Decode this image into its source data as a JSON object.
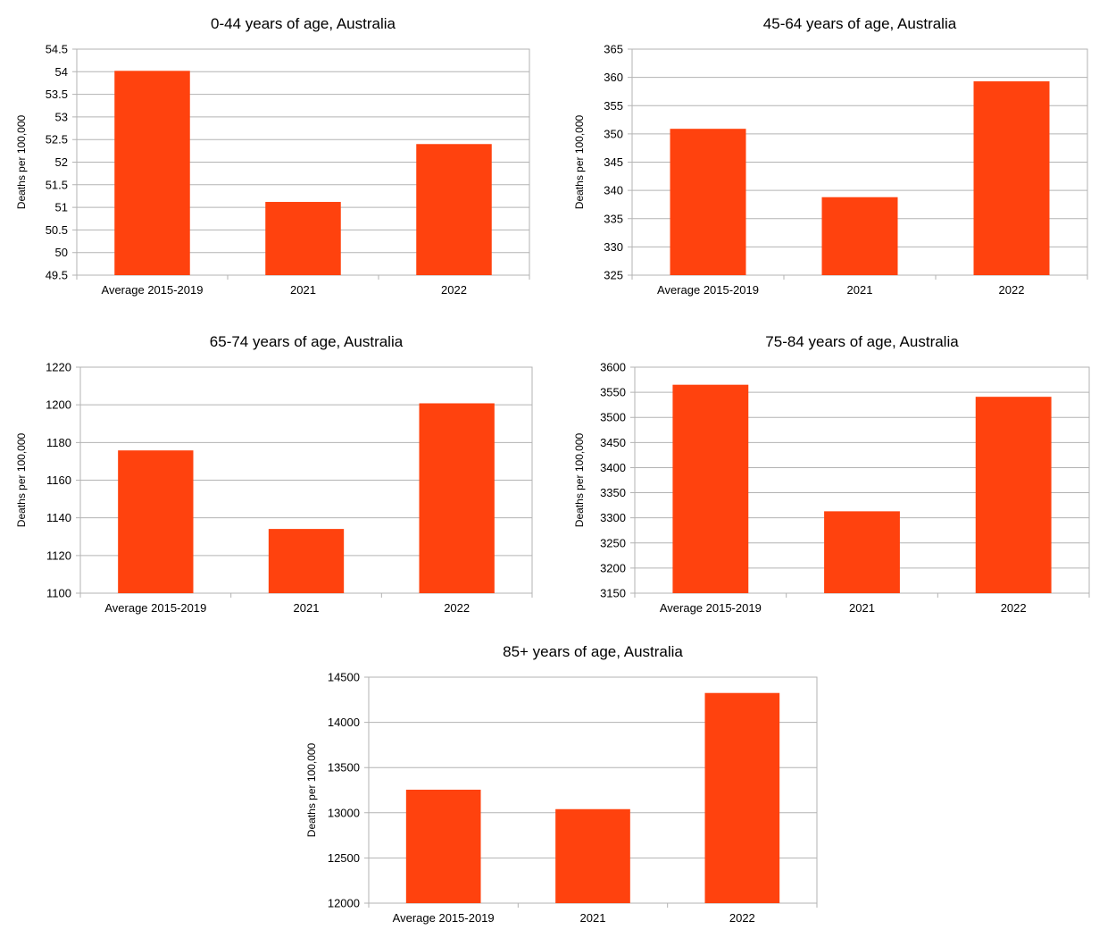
{
  "chart_data": [
    {
      "type": "bar",
      "title": "0-44 years of age, Australia",
      "ylabel": "Deaths per 100,000",
      "xlabel": "",
      "categories": [
        "Average 2015-2019",
        "2021",
        "2022"
      ],
      "values": [
        54.02,
        51.12,
        52.4
      ],
      "ylim": [
        49.5,
        54.5
      ],
      "yticks": [
        "49.5",
        "50",
        "50.5",
        "51",
        "51.5",
        "52",
        "52.5",
        "53",
        "53.5",
        "54",
        "54.5"
      ],
      "grid": true,
      "legend": "none",
      "bar_color": "#ff420e"
    },
    {
      "type": "bar",
      "title": "45-64 years of age, Australia",
      "ylabel": "Deaths per 100,000",
      "xlabel": "",
      "categories": [
        "Average 2015-2019",
        "2021",
        "2022"
      ],
      "values": [
        350.9,
        338.8,
        359.3
      ],
      "ylim": [
        325,
        365
      ],
      "yticks": [
        "325",
        "330",
        "335",
        "340",
        "345",
        "350",
        "355",
        "360",
        "365"
      ],
      "grid": true,
      "legend": "none",
      "bar_color": "#ff420e"
    },
    {
      "type": "bar",
      "title": "65-74 years of age, Australia",
      "ylabel": "Deaths per 100,000",
      "xlabel": "",
      "categories": [
        "Average 2015-2019",
        "2021",
        "2022"
      ],
      "values": [
        1175.8,
        1134.1,
        1200.8
      ],
      "ylim": [
        1100,
        1220
      ],
      "yticks": [
        "1100",
        "1120",
        "1140",
        "1160",
        "1180",
        "1200",
        "1220"
      ],
      "grid": true,
      "legend": "none",
      "bar_color": "#ff420e"
    },
    {
      "type": "bar",
      "title": "75-84 years of age, Australia",
      "ylabel": "Deaths per 100,000",
      "xlabel": "",
      "categories": [
        "Average 2015-2019",
        "2021",
        "2022"
      ],
      "values": [
        3565,
        3313,
        3541
      ],
      "ylim": [
        3150,
        3600
      ],
      "yticks": [
        "3150",
        "3200",
        "3250",
        "3300",
        "3350",
        "3400",
        "3450",
        "3500",
        "3550",
        "3600"
      ],
      "grid": true,
      "legend": "none",
      "bar_color": "#ff420e"
    },
    {
      "type": "bar",
      "title": "85+ years of age, Australia",
      "ylabel": "Deaths per 100,000",
      "xlabel": "",
      "categories": [
        "Average 2015-2019",
        "2021",
        "2022"
      ],
      "values": [
        13255,
        13040,
        14325
      ],
      "ylim": [
        12000,
        14500
      ],
      "yticks": [
        "12000",
        "12500",
        "13000",
        "13500",
        "14000",
        "14500"
      ],
      "grid": true,
      "legend": "none",
      "bar_color": "#ff420e"
    }
  ]
}
